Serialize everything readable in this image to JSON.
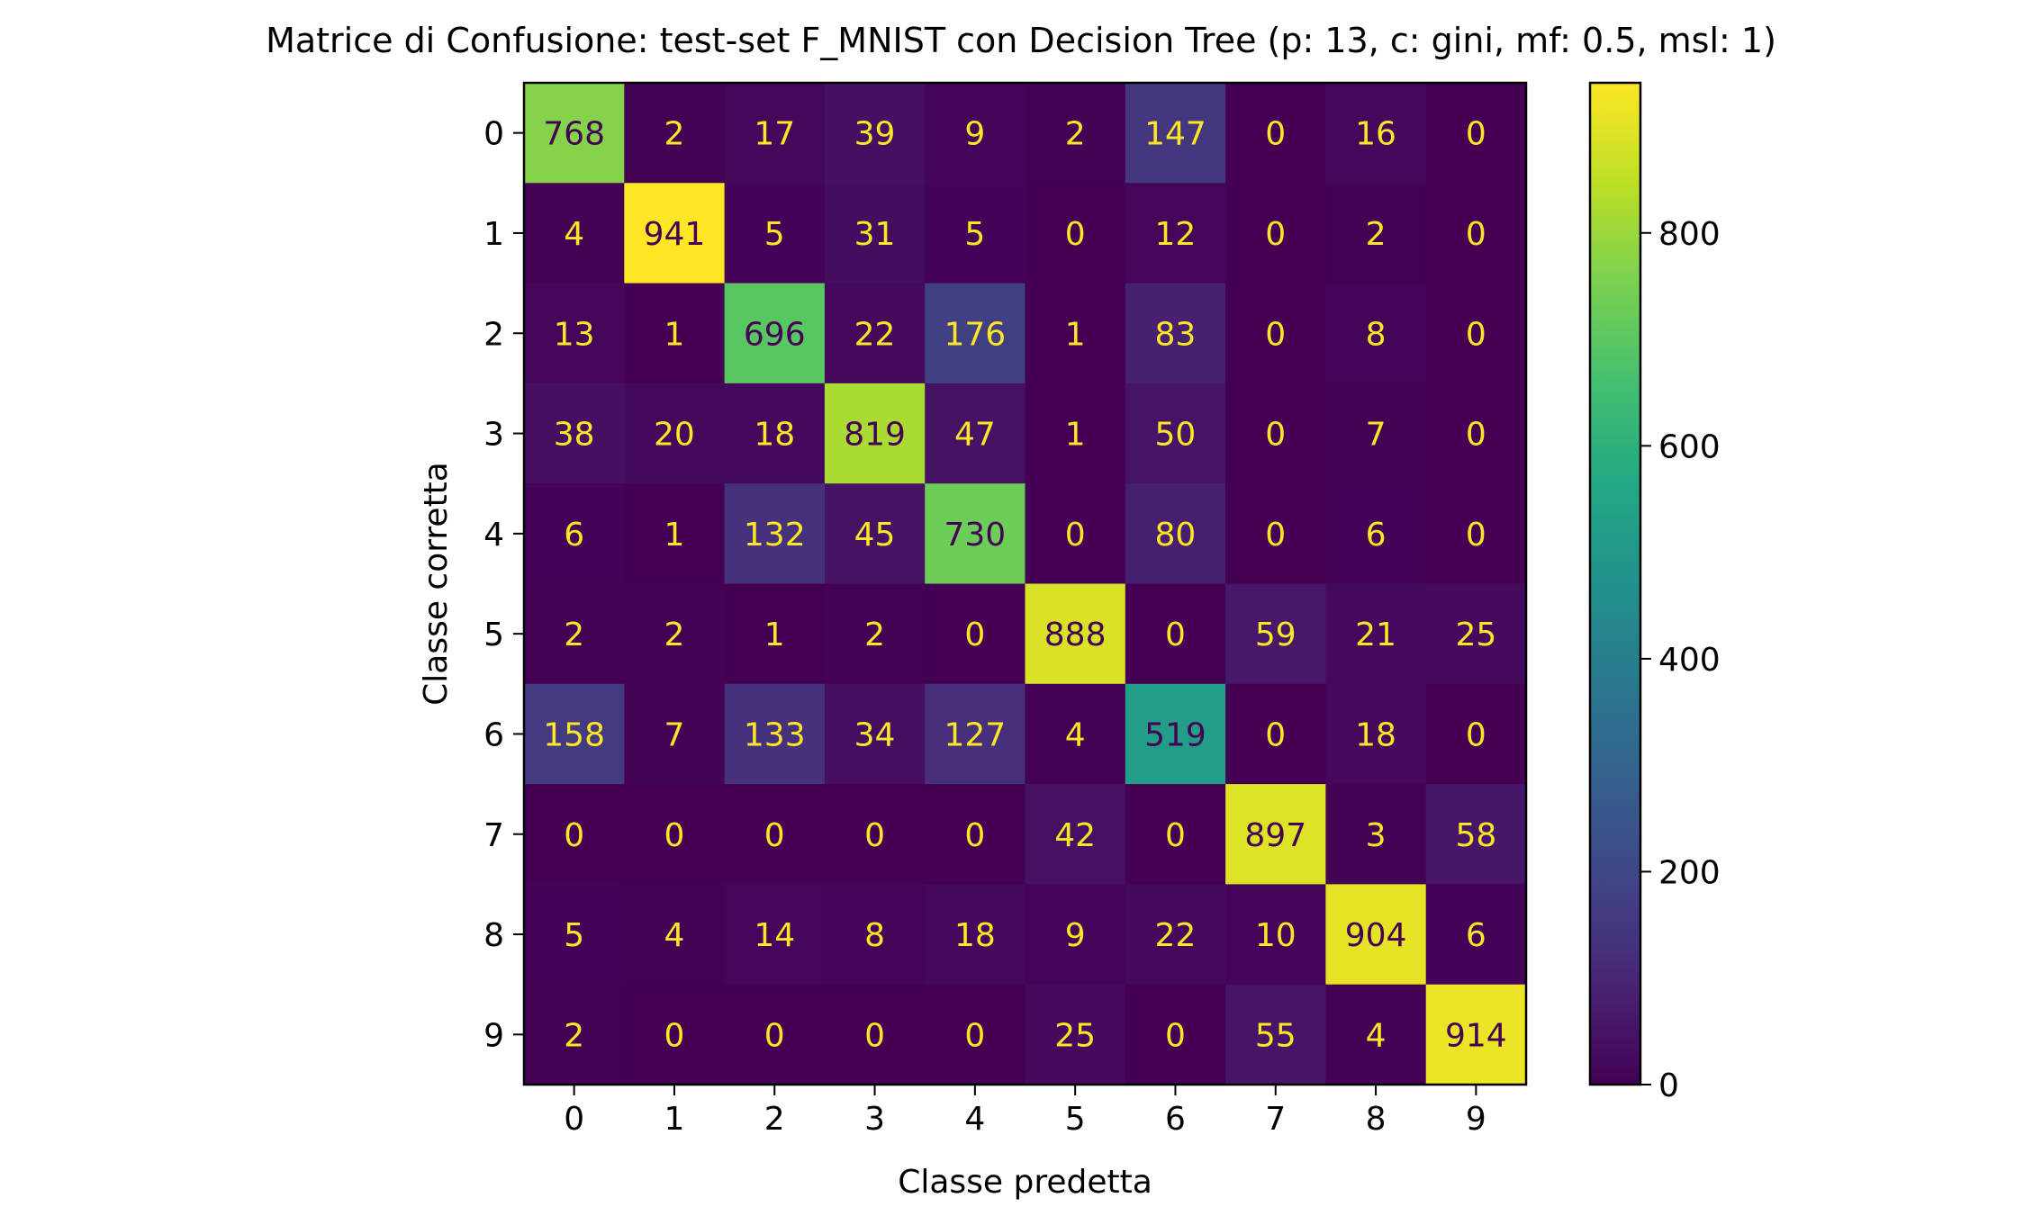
{
  "chart_data": {
    "type": "heatmap",
    "title": "Matrice di Confusione: test-set F_MNIST con Decision Tree (p: 13, c: gini, mf: 0.5, msl: 1)",
    "xlabel": "Classe predetta",
    "ylabel": "Classe corretta",
    "x_categories": [
      "0",
      "1",
      "2",
      "3",
      "4",
      "5",
      "6",
      "7",
      "8",
      "9"
    ],
    "y_categories": [
      "0",
      "1",
      "2",
      "3",
      "4",
      "5",
      "6",
      "7",
      "8",
      "9"
    ],
    "values": [
      [
        768,
        2,
        17,
        39,
        9,
        2,
        147,
        0,
        16,
        0
      ],
      [
        4,
        941,
        5,
        31,
        5,
        0,
        12,
        0,
        2,
        0
      ],
      [
        13,
        1,
        696,
        22,
        176,
        1,
        83,
        0,
        8,
        0
      ],
      [
        38,
        20,
        18,
        819,
        47,
        1,
        50,
        0,
        7,
        0
      ],
      [
        6,
        1,
        132,
        45,
        730,
        0,
        80,
        0,
        6,
        0
      ],
      [
        2,
        2,
        1,
        2,
        0,
        888,
        0,
        59,
        21,
        25
      ],
      [
        158,
        7,
        133,
        34,
        127,
        4,
        519,
        0,
        18,
        0
      ],
      [
        0,
        0,
        0,
        0,
        0,
        42,
        0,
        897,
        3,
        58
      ],
      [
        5,
        4,
        14,
        8,
        18,
        9,
        22,
        10,
        904,
        6
      ],
      [
        2,
        0,
        0,
        0,
        0,
        25,
        0,
        55,
        4,
        914
      ]
    ],
    "colormap": "viridis",
    "vmin": 0,
    "vmax": 941,
    "colorbar_ticks": [
      0,
      200,
      400,
      600,
      800
    ],
    "text_color_light": "#fde725",
    "text_color_dark": "#440154"
  }
}
